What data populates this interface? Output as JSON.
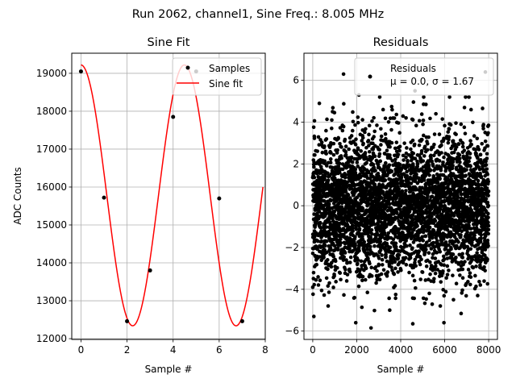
{
  "suptitle": "Run 2062, channel1, Sine Freq.: 8.005 MHz",
  "chart_data": [
    {
      "type": "line",
      "title": "Sine Fit",
      "xlabel": "Sample #",
      "ylabel": "ADC Counts",
      "xlim": [
        -0.4,
        8.0
      ],
      "ylim": [
        11980,
        19530
      ],
      "xticks": [
        0,
        2,
        4,
        6,
        8
      ],
      "yticks": [
        12000,
        13000,
        14000,
        15000,
        16000,
        17000,
        18000,
        19000
      ],
      "grid": true,
      "legend": "top-right",
      "series": [
        {
          "name": "Samples",
          "kind": "scatter",
          "color": "#000000",
          "x": [
            0,
            1,
            2,
            3,
            4,
            5,
            6,
            7
          ],
          "y": [
            19050,
            15720,
            12460,
            13800,
            17850,
            19050,
            15700,
            12460
          ]
        },
        {
          "name": "Sine fit",
          "kind": "line",
          "color": "#ff0000",
          "function": {
            "offset": 15780,
            "amplitude": 3440,
            "angular_frequency_per_sample": 1.4,
            "phase": 1.5708,
            "x_range": [
              0,
              7.9
            ]
          }
        }
      ]
    },
    {
      "type": "scatter",
      "title": "Residuals",
      "xlabel": "Sample #",
      "ylabel": "",
      "xlim": [
        -400,
        8400
      ],
      "ylim": [
        -6.4,
        7.3
      ],
      "xticks": [
        0,
        2000,
        4000,
        6000,
        8000
      ],
      "yticks": [
        -6,
        -4,
        -2,
        0,
        2,
        4,
        6
      ],
      "grid": true,
      "legend": "top-right",
      "series": [
        {
          "name": "Residuals",
          "color": "#000000",
          "distribution": {
            "mu": 0.0,
            "sigma": 1.67,
            "n": 8000,
            "x_range": [
              0,
              7999
            ]
          },
          "outliers": [
            [
              1400,
              6.3
            ],
            [
              7850,
              6.4
            ],
            [
              4650,
              5.5
            ],
            [
              2100,
              5.3
            ],
            [
              300,
              4.9
            ],
            [
              3200,
              4.6
            ],
            [
              6900,
              4.7
            ],
            [
              900,
              4.5
            ],
            [
              5600,
              4.4
            ],
            [
              7200,
              4.6
            ],
            [
              0,
              -3.9
            ],
            [
              50,
              -5.3
            ],
            [
              2650,
              -5.85
            ],
            [
              4550,
              -5.65
            ],
            [
              3500,
              -5.0
            ],
            [
              700,
              -4.8
            ],
            [
              5800,
              -4.8
            ],
            [
              7500,
              -4.3
            ],
            [
              1900,
              -4.4
            ],
            [
              6400,
              -4.5
            ]
          ]
        }
      ],
      "legend_text": "μ = 0.0, σ = 1.67"
    }
  ]
}
